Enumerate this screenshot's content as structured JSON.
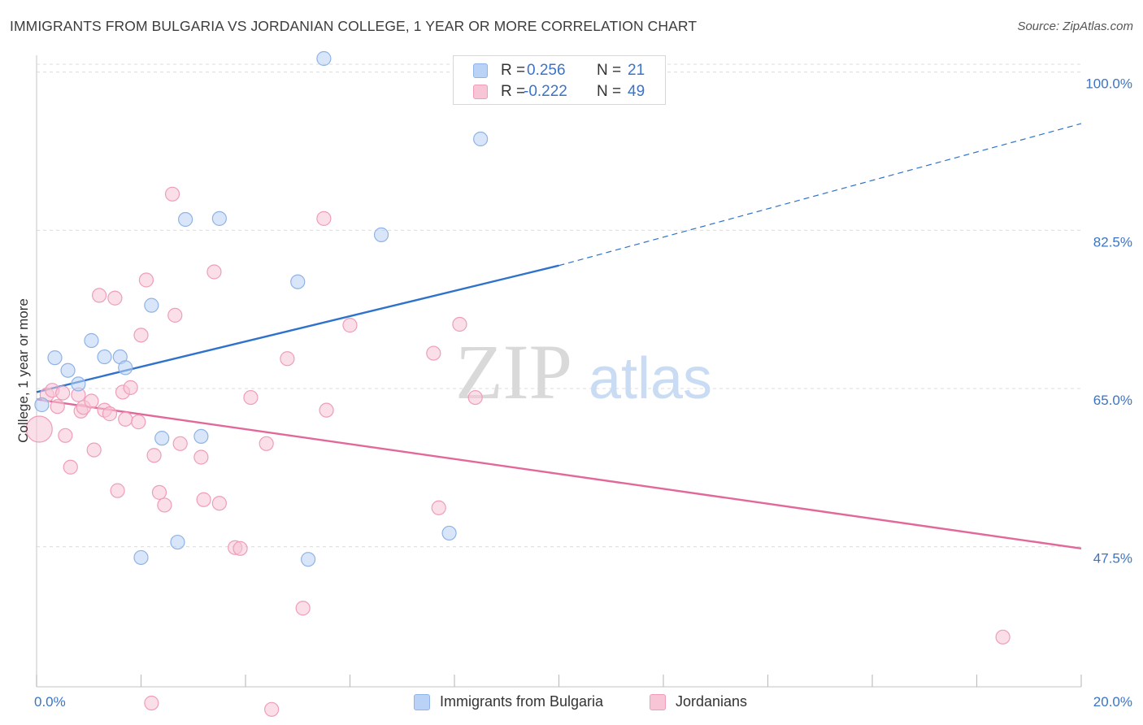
{
  "title": "IMMIGRANTS FROM BULGARIA VS JORDANIAN COLLEGE, 1 YEAR OR MORE CORRELATION CHART",
  "source": "Source: ZipAtlas.com",
  "watermark": {
    "zip": "ZIP",
    "atlas": "atlas"
  },
  "legend_top": [
    {
      "r_label": "R =",
      "r_value": "0.256",
      "n_label": "N =",
      "n_value": "21"
    },
    {
      "r_label": "R =",
      "r_value": "-0.222",
      "n_label": "N =",
      "n_value": "49"
    }
  ],
  "colors": {
    "blue_fill": "#b9d2f5",
    "blue_stroke": "#8fb3e6",
    "blue_line": "#2f72cc",
    "pink_fill": "#f8c5d6",
    "pink_stroke": "#ef9db8",
    "pink_line": "#e2689a",
    "axis_text": "#3b74c6",
    "grid": "#dcdcdc"
  },
  "chart_data": {
    "type": "scatter",
    "ylabel": "College, 1 year or more",
    "xlim": [
      0,
      20
    ],
    "ylim": [
      32,
      101.5
    ],
    "x_ticks": [
      0,
      2,
      4,
      6,
      8,
      10,
      12,
      14,
      16,
      18,
      20
    ],
    "x_tick_labels": [
      {
        "value": 0,
        "label": "0.0%"
      },
      {
        "value": 20,
        "label": "20.0%"
      }
    ],
    "y_ticks": [
      {
        "value": 47.5,
        "label": "47.5%"
      },
      {
        "value": 65.0,
        "label": "65.0%"
      },
      {
        "value": 82.5,
        "label": "82.5%"
      },
      {
        "value": 100.0,
        "label": "100.0%"
      }
    ],
    "grid": true,
    "series": [
      {
        "name": "Immigrants from Bulgaria",
        "color": "#b9d2f5",
        "points": [
          [
            0.1,
            63.2
          ],
          [
            0.35,
            68.4
          ],
          [
            0.6,
            67.0
          ],
          [
            0.8,
            65.5
          ],
          [
            1.05,
            70.3
          ],
          [
            1.3,
            68.5
          ],
          [
            1.6,
            68.5
          ],
          [
            1.7,
            67.3
          ],
          [
            2.2,
            74.2
          ],
          [
            2.0,
            46.3
          ],
          [
            2.4,
            59.5
          ],
          [
            2.7,
            48.0
          ],
          [
            2.85,
            83.7
          ],
          [
            3.5,
            83.8
          ],
          [
            3.15,
            59.7
          ],
          [
            5.0,
            76.8
          ],
          [
            5.2,
            46.1
          ],
          [
            5.5,
            101.5
          ],
          [
            6.6,
            82.0
          ],
          [
            7.9,
            49.0
          ],
          [
            8.5,
            92.6
          ]
        ],
        "trend": {
          "x": [
            0,
            10
          ],
          "y": [
            64.6,
            78.6
          ],
          "dashed_to": [
            20,
            94.3
          ]
        }
      },
      {
        "name": "Jordanians",
        "color": "#f8c5d6",
        "points": [
          [
            0.05,
            60.5
          ],
          [
            0.2,
            64.3
          ],
          [
            0.3,
            64.8
          ],
          [
            0.4,
            63.0
          ],
          [
            0.5,
            64.5
          ],
          [
            0.55,
            59.8
          ],
          [
            0.65,
            56.3
          ],
          [
            0.8,
            64.3
          ],
          [
            0.85,
            62.5
          ],
          [
            0.9,
            62.9
          ],
          [
            1.05,
            63.6
          ],
          [
            1.1,
            58.2
          ],
          [
            1.3,
            62.6
          ],
          [
            1.4,
            62.2
          ],
          [
            1.2,
            75.3
          ],
          [
            1.5,
            75.0
          ],
          [
            1.55,
            53.7
          ],
          [
            1.65,
            64.6
          ],
          [
            1.7,
            61.6
          ],
          [
            1.8,
            65.1
          ],
          [
            1.95,
            61.3
          ],
          [
            2.0,
            70.9
          ],
          [
            2.1,
            77.0
          ],
          [
            2.25,
            57.6
          ],
          [
            2.35,
            53.5
          ],
          [
            2.45,
            52.1
          ],
          [
            2.6,
            86.5
          ],
          [
            2.65,
            73.1
          ],
          [
            2.75,
            58.9
          ],
          [
            3.15,
            57.4
          ],
          [
            3.2,
            52.7
          ],
          [
            3.4,
            77.9
          ],
          [
            3.5,
            52.3
          ],
          [
            3.8,
            47.4
          ],
          [
            3.9,
            47.3
          ],
          [
            4.1,
            64.0
          ],
          [
            4.5,
            29.5
          ],
          [
            4.4,
            58.9
          ],
          [
            4.8,
            68.3
          ],
          [
            5.1,
            40.7
          ],
          [
            5.5,
            83.8
          ],
          [
            5.55,
            62.6
          ],
          [
            6.0,
            72.0
          ],
          [
            7.6,
            68.9
          ],
          [
            7.7,
            51.8
          ],
          [
            8.1,
            72.1
          ],
          [
            8.4,
            64.0
          ],
          [
            18.5,
            37.5
          ],
          [
            2.2,
            30.2
          ]
        ],
        "trend": {
          "x": [
            0,
            20
          ],
          "y": [
            63.8,
            47.3
          ]
        }
      }
    ]
  },
  "bottom_legend": [
    {
      "label": "Immigrants from Bulgaria"
    },
    {
      "label": "Jordanians"
    }
  ]
}
